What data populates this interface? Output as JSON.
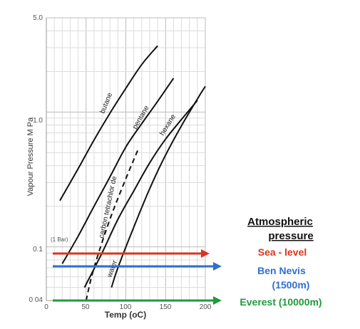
{
  "chart_data": {
    "type": "line",
    "xlabel": "Temp (oC)",
    "ylabel": "Vapour Pressure  M Pa",
    "xlim": [
      0,
      200
    ],
    "ylim": [
      0.04,
      5.0
    ],
    "yscale": "log",
    "grid": true,
    "x_ticks": [
      "0",
      "50",
      "100",
      "150",
      "200"
    ],
    "y_ticks": [
      {
        "value": 5.0,
        "label": "5.0"
      },
      {
        "value": 1.0,
        "label": "1.0"
      },
      {
        "value": 0.1,
        "label": "0.1"
      },
      {
        "value": 0.04,
        "label": "0 04"
      }
    ],
    "note": "(1 Bar)",
    "series": [
      {
        "name": "butane",
        "style": "solid",
        "x": [
          17,
          40,
          60,
          80,
          100,
          120,
          140
        ],
        "y": [
          0.22,
          0.38,
          0.62,
          0.98,
          1.5,
          2.25,
          3.1
        ]
      },
      {
        "name": "pentane",
        "style": "solid",
        "x": [
          20,
          40,
          60,
          80,
          100,
          120,
          140,
          160
        ],
        "y": [
          0.075,
          0.12,
          0.2,
          0.33,
          0.55,
          0.82,
          1.2,
          1.78
        ]
      },
      {
        "name": "hexane",
        "style": "solid",
        "x": [
          48,
          70,
          90,
          110,
          130,
          150,
          170,
          190
        ],
        "y": [
          0.05,
          0.09,
          0.16,
          0.26,
          0.42,
          0.63,
          0.88,
          1.22
        ]
      },
      {
        "name": "carbon tetrachlor de",
        "style": "dashed",
        "x": [
          50,
          60,
          80,
          100,
          115
        ],
        "y": [
          0.04,
          0.07,
          0.16,
          0.32,
          0.52
        ]
      },
      {
        "name": "water",
        "style": "solid",
        "x": [
          82,
          90,
          110,
          130,
          150,
          170,
          190,
          200
        ],
        "y": [
          0.05,
          0.07,
          0.14,
          0.27,
          0.48,
          0.79,
          1.25,
          1.55
        ]
      }
    ]
  },
  "reference_lines": [
    {
      "label": "Sea - level",
      "y": 0.1,
      "color": "#d9341c"
    },
    {
      "label": "Ben Nevis",
      "sublabel": "(1500m)",
      "y": 0.085,
      "color": "#2f6fd0"
    },
    {
      "label": "Everest (10000m)",
      "y": 0.04,
      "color": "#1f9a3c"
    }
  ],
  "atmospheric_title_line1": "Atmospheric",
  "atmospheric_title_line2": "pressure"
}
